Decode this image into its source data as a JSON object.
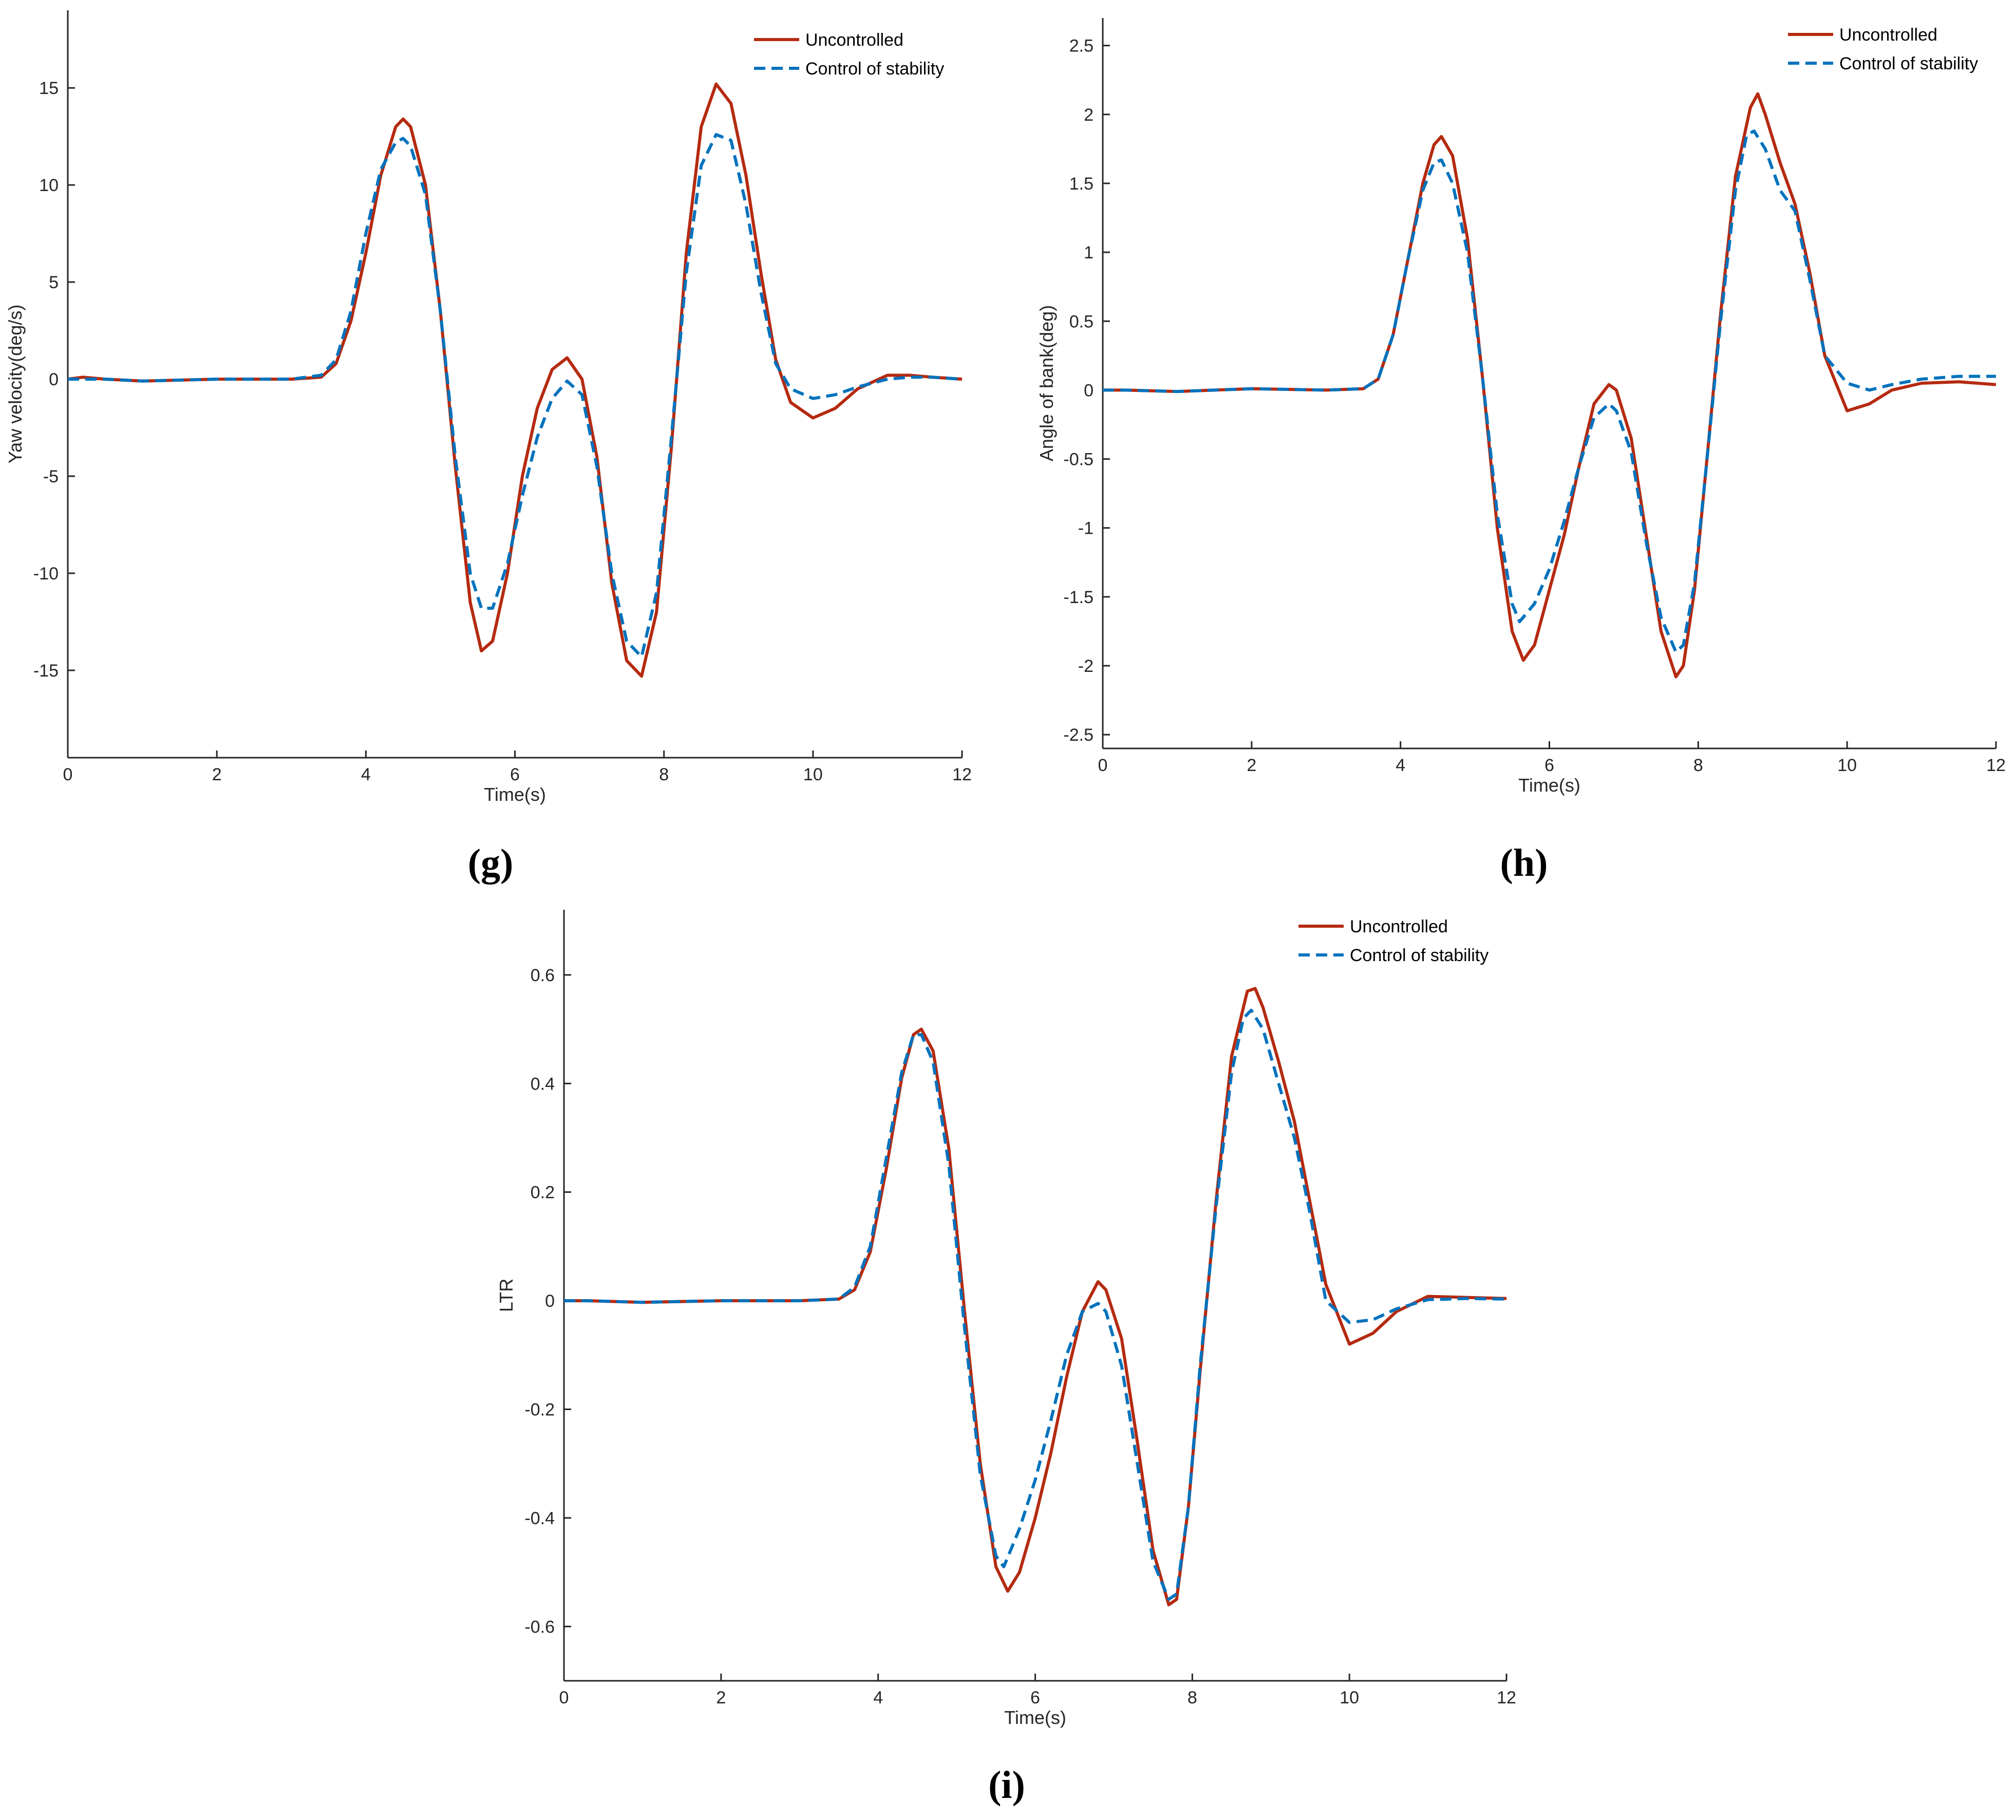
{
  "chart_data": [
    {
      "type": "line",
      "panel": "(g)",
      "xlabel": "Time(s)",
      "ylabel": "Yaw velocity(deg/s)",
      "xlim": [
        0,
        12
      ],
      "ylim": [
        -19.5,
        19
      ],
      "xticks": [
        0,
        2,
        4,
        6,
        8,
        10,
        12
      ],
      "yticks": [
        -15,
        -10,
        -5,
        0,
        5,
        10,
        15
      ],
      "ytick_labels": [
        "-15",
        "-10",
        "-5",
        "0",
        "5",
        "10",
        "15"
      ],
      "grid": false,
      "legend_position": "top-right",
      "series": [
        {
          "name": "Uncontrolled",
          "color": "#B52A10",
          "dash": "solid",
          "x": [
            0,
            0.2,
            0.5,
            1.0,
            2.0,
            3.0,
            3.4,
            3.6,
            3.8,
            4.0,
            4.2,
            4.4,
            4.5,
            4.6,
            4.8,
            5.0,
            5.2,
            5.4,
            5.55,
            5.7,
            5.9,
            6.1,
            6.3,
            6.5,
            6.7,
            6.9,
            7.1,
            7.3,
            7.5,
            7.7,
            7.9,
            8.1,
            8.3,
            8.5,
            8.7,
            8.9,
            9.1,
            9.3,
            9.5,
            9.7,
            10.0,
            10.3,
            10.6,
            11.0,
            11.3,
            11.6,
            12.0
          ],
          "y": [
            0,
            0.1,
            0,
            -0.1,
            0,
            0,
            0.1,
            0.8,
            3,
            6.5,
            10.5,
            13,
            13.4,
            13,
            10,
            3.5,
            -4.5,
            -11.5,
            -14,
            -13.5,
            -10,
            -5,
            -1.5,
            0.5,
            1.1,
            0,
            -4,
            -10.5,
            -14.5,
            -15.3,
            -12,
            -3.5,
            6.5,
            13,
            15.2,
            14.2,
            10.5,
            5.5,
            1,
            -1.2,
            -2,
            -1.5,
            -0.5,
            0.2,
            0.2,
            0.1,
            0
          ]
        },
        {
          "name": "Control of stability",
          "color": "#0072BD",
          "dash": "dashed",
          "x": [
            0,
            0.5,
            1.0,
            2.0,
            3.0,
            3.4,
            3.6,
            3.8,
            4.0,
            4.2,
            4.4,
            4.5,
            4.6,
            4.8,
            5.0,
            5.2,
            5.4,
            5.55,
            5.7,
            5.9,
            6.1,
            6.3,
            6.5,
            6.7,
            6.9,
            7.1,
            7.3,
            7.5,
            7.7,
            7.9,
            8.1,
            8.3,
            8.5,
            8.7,
            8.9,
            9.1,
            9.3,
            9.5,
            9.7,
            10.0,
            10.3,
            10.6,
            11.0,
            11.3,
            11.6,
            12.0
          ],
          "y": [
            0,
            0,
            -0.1,
            0,
            0,
            0.2,
            1,
            3.5,
            7.5,
            10.8,
            12.2,
            12.4,
            12,
            9.5,
            3.5,
            -4,
            -10,
            -11.8,
            -11.8,
            -9.5,
            -6,
            -3,
            -1,
            -0.1,
            -0.8,
            -4.5,
            -10,
            -13.5,
            -14.3,
            -11,
            -3,
            5.5,
            11,
            12.6,
            12.3,
            9,
            4.5,
            0.8,
            -0.5,
            -1,
            -0.8,
            -0.4,
            0,
            0.1,
            0.1,
            0
          ]
        }
      ]
    },
    {
      "type": "line",
      "panel": "(h)",
      "xlabel": "Time(s)",
      "ylabel": "Angle of bank(deg)",
      "xlim": [
        0,
        12
      ],
      "ylim": [
        -2.6,
        2.7
      ],
      "xticks": [
        0,
        2,
        4,
        6,
        8,
        10,
        12
      ],
      "yticks": [
        -2.5,
        -2,
        -1.5,
        -1,
        -0.5,
        0,
        0.5,
        1,
        1.5,
        2,
        2.5
      ],
      "ytick_labels": [
        "-2.5",
        "-2",
        "-1.5",
        "-1",
        "-0.5",
        "0",
        "0.5",
        "1",
        "1.5",
        "2",
        "2.5"
      ],
      "grid": false,
      "legend_position": "top-right",
      "series": [
        {
          "name": "Uncontrolled",
          "color": "#B52A10",
          "dash": "solid",
          "x": [
            0,
            0.3,
            1.0,
            2.0,
            3.0,
            3.5,
            3.7,
            3.9,
            4.1,
            4.3,
            4.45,
            4.55,
            4.7,
            4.9,
            5.1,
            5.3,
            5.5,
            5.65,
            5.8,
            6.0,
            6.2,
            6.4,
            6.6,
            6.8,
            6.9,
            7.1,
            7.3,
            7.5,
            7.7,
            7.8,
            7.95,
            8.1,
            8.3,
            8.5,
            8.7,
            8.8,
            8.9,
            9.1,
            9.3,
            9.5,
            9.7,
            10.0,
            10.3,
            10.6,
            11.0,
            11.5,
            12.0
          ],
          "y": [
            0,
            0,
            -0.01,
            0.01,
            0,
            0.01,
            0.08,
            0.4,
            0.95,
            1.5,
            1.78,
            1.84,
            1.7,
            1.1,
            0.1,
            -1.0,
            -1.75,
            -1.96,
            -1.85,
            -1.45,
            -1.05,
            -0.55,
            -0.1,
            0.04,
            0.0,
            -0.35,
            -1.05,
            -1.75,
            -2.08,
            -2.0,
            -1.45,
            -0.6,
            0.55,
            1.55,
            2.05,
            2.15,
            2.0,
            1.65,
            1.35,
            0.85,
            0.25,
            -0.15,
            -0.1,
            0.0,
            0.05,
            0.06,
            0.04
          ]
        },
        {
          "name": "Control of stability",
          "color": "#0072BD",
          "dash": "dashed",
          "x": [
            0,
            0.3,
            1.0,
            2.0,
            3.0,
            3.5,
            3.7,
            3.9,
            4.1,
            4.3,
            4.45,
            4.55,
            4.7,
            4.9,
            5.1,
            5.3,
            5.5,
            5.6,
            5.8,
            6.0,
            6.2,
            6.4,
            6.6,
            6.8,
            6.9,
            7.1,
            7.3,
            7.5,
            7.7,
            7.8,
            7.95,
            8.1,
            8.3,
            8.5,
            8.65,
            8.75,
            8.9,
            9.1,
            9.3,
            9.5,
            9.7,
            10.0,
            10.3,
            10.6,
            11.0,
            11.5,
            12.0
          ],
          "y": [
            0,
            0,
            -0.01,
            0.01,
            0,
            0.01,
            0.08,
            0.4,
            0.95,
            1.45,
            1.65,
            1.67,
            1.5,
            1.0,
            0.1,
            -0.9,
            -1.55,
            -1.68,
            -1.55,
            -1.3,
            -0.95,
            -0.55,
            -0.2,
            -0.1,
            -0.15,
            -0.45,
            -1.1,
            -1.65,
            -1.9,
            -1.85,
            -1.4,
            -0.6,
            0.5,
            1.45,
            1.85,
            1.88,
            1.75,
            1.45,
            1.3,
            0.8,
            0.25,
            0.05,
            0.0,
            0.04,
            0.08,
            0.1,
            0.1
          ]
        }
      ]
    },
    {
      "type": "line",
      "panel": "(i)",
      "xlabel": "Time(s)",
      "ylabel": "LTR",
      "xlim": [
        0,
        12
      ],
      "ylim": [
        -0.7,
        0.72
      ],
      "xticks": [
        0,
        2,
        4,
        6,
        8,
        10,
        12
      ],
      "yticks": [
        -0.6,
        -0.4,
        -0.2,
        0,
        0.2,
        0.4,
        0.6
      ],
      "ytick_labels": [
        "-0.6",
        "-0.4",
        "-0.2",
        "0",
        "0.2",
        "0.4",
        "0.6"
      ],
      "grid": false,
      "legend_position": "top-right",
      "series": [
        {
          "name": "Uncontrolled",
          "color": "#B52A10",
          "dash": "solid",
          "x": [
            0,
            0.3,
            1.0,
            2.0,
            3.0,
            3.5,
            3.7,
            3.9,
            4.1,
            4.3,
            4.45,
            4.55,
            4.7,
            4.9,
            5.1,
            5.3,
            5.5,
            5.65,
            5.8,
            6.0,
            6.2,
            6.4,
            6.6,
            6.8,
            6.9,
            7.1,
            7.3,
            7.5,
            7.7,
            7.8,
            7.95,
            8.1,
            8.3,
            8.5,
            8.7,
            8.8,
            8.9,
            9.1,
            9.3,
            9.5,
            9.7,
            10.0,
            10.3,
            10.6,
            11.0,
            11.5,
            12.0
          ],
          "y": [
            0,
            0,
            -0.003,
            0,
            0,
            0.003,
            0.02,
            0.09,
            0.24,
            0.41,
            0.49,
            0.5,
            0.46,
            0.28,
            -0.02,
            -0.3,
            -0.49,
            -0.535,
            -0.5,
            -0.4,
            -0.28,
            -0.14,
            -0.02,
            0.035,
            0.02,
            -0.07,
            -0.26,
            -0.46,
            -0.56,
            -0.55,
            -0.38,
            -0.13,
            0.18,
            0.45,
            0.57,
            0.575,
            0.54,
            0.44,
            0.33,
            0.18,
            0.03,
            -0.08,
            -0.06,
            -0.02,
            0.008,
            0.006,
            0.004
          ]
        },
        {
          "name": "Control of stability",
          "color": "#0072BD",
          "dash": "dashed",
          "x": [
            0,
            0.3,
            1.0,
            2.0,
            3.0,
            3.5,
            3.7,
            3.9,
            4.1,
            4.3,
            4.45,
            4.55,
            4.7,
            4.9,
            5.1,
            5.3,
            5.5,
            5.6,
            5.8,
            6.0,
            6.2,
            6.4,
            6.6,
            6.8,
            6.9,
            7.1,
            7.3,
            7.5,
            7.7,
            7.8,
            7.95,
            8.1,
            8.3,
            8.5,
            8.65,
            8.75,
            8.9,
            9.1,
            9.3,
            9.5,
            9.7,
            10.0,
            10.3,
            10.6,
            11.0,
            11.5,
            12.0
          ],
          "y": [
            0,
            0,
            -0.003,
            0,
            0,
            0.003,
            0.025,
            0.1,
            0.26,
            0.42,
            0.49,
            0.49,
            0.44,
            0.25,
            -0.05,
            -0.32,
            -0.47,
            -0.49,
            -0.42,
            -0.33,
            -0.22,
            -0.1,
            -0.02,
            -0.005,
            -0.02,
            -0.12,
            -0.3,
            -0.48,
            -0.55,
            -0.54,
            -0.38,
            -0.12,
            0.17,
            0.42,
            0.52,
            0.535,
            0.5,
            0.4,
            0.3,
            0.16,
            0.0,
            -0.04,
            -0.035,
            -0.015,
            0.002,
            0.004,
            0.003
          ]
        }
      ]
    }
  ]
}
